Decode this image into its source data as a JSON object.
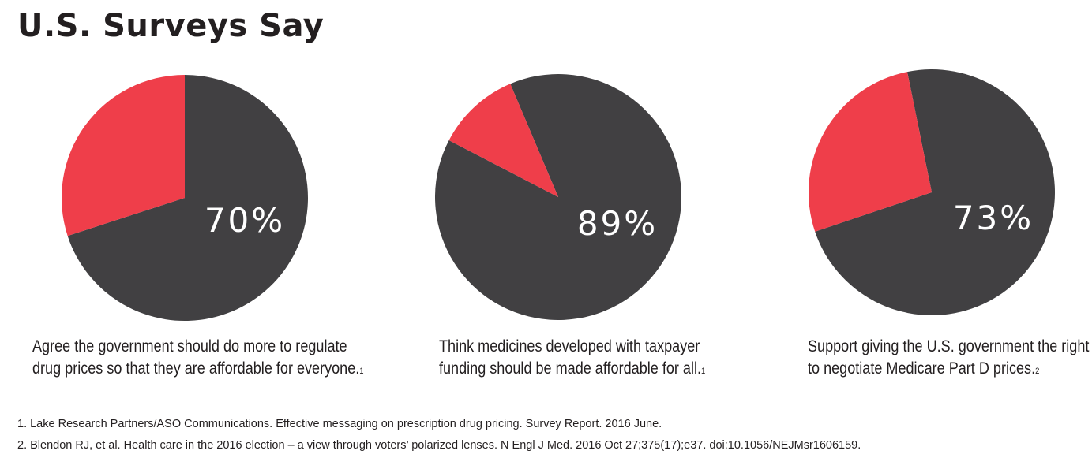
{
  "title": "U.S. Surveys Say",
  "colors": {
    "majority": "#414042",
    "minority": "#ef3e4a",
    "text": "#231f20"
  },
  "chart_data": [
    {
      "type": "pie",
      "label": "70%",
      "slices": [
        {
          "name": "agree",
          "value": 70,
          "color": "#414042"
        },
        {
          "name": "other",
          "value": 30,
          "color": "#ef3e4a"
        }
      ],
      "caption": [
        "Agree the government should do more to regulate",
        "drug prices so that they are affordable for everyone."
      ],
      "footnote": "1"
    },
    {
      "type": "pie",
      "label": "89%",
      "slices": [
        {
          "name": "agree",
          "value": 89,
          "color": "#414042"
        },
        {
          "name": "other",
          "value": 11,
          "color": "#ef3e4a"
        }
      ],
      "caption": [
        "Think medicines developed with taxpayer",
        "funding should be made affordable for all."
      ],
      "footnote": "1"
    },
    {
      "type": "pie",
      "label": "73%",
      "slices": [
        {
          "name": "agree",
          "value": 73,
          "color": "#414042"
        },
        {
          "name": "other",
          "value": 27,
          "color": "#ef3e4a"
        }
      ],
      "caption": [
        "Support giving the U.S. government the right",
        "to negotiate Medicare Part D prices."
      ],
      "footnote": "2"
    }
  ],
  "references": [
    "1. Lake Research Partners/ASO Communications. Effective messaging on prescription drug pricing. Survey Report. 2016 June.",
    "2. Blendon RJ, et al. Health care in the 2016 election – a view through voters’ polarized lenses. N Engl J Med. 2016 Oct 27;375(17);e37. doi:10.1056/NEJMsr1606159."
  ]
}
